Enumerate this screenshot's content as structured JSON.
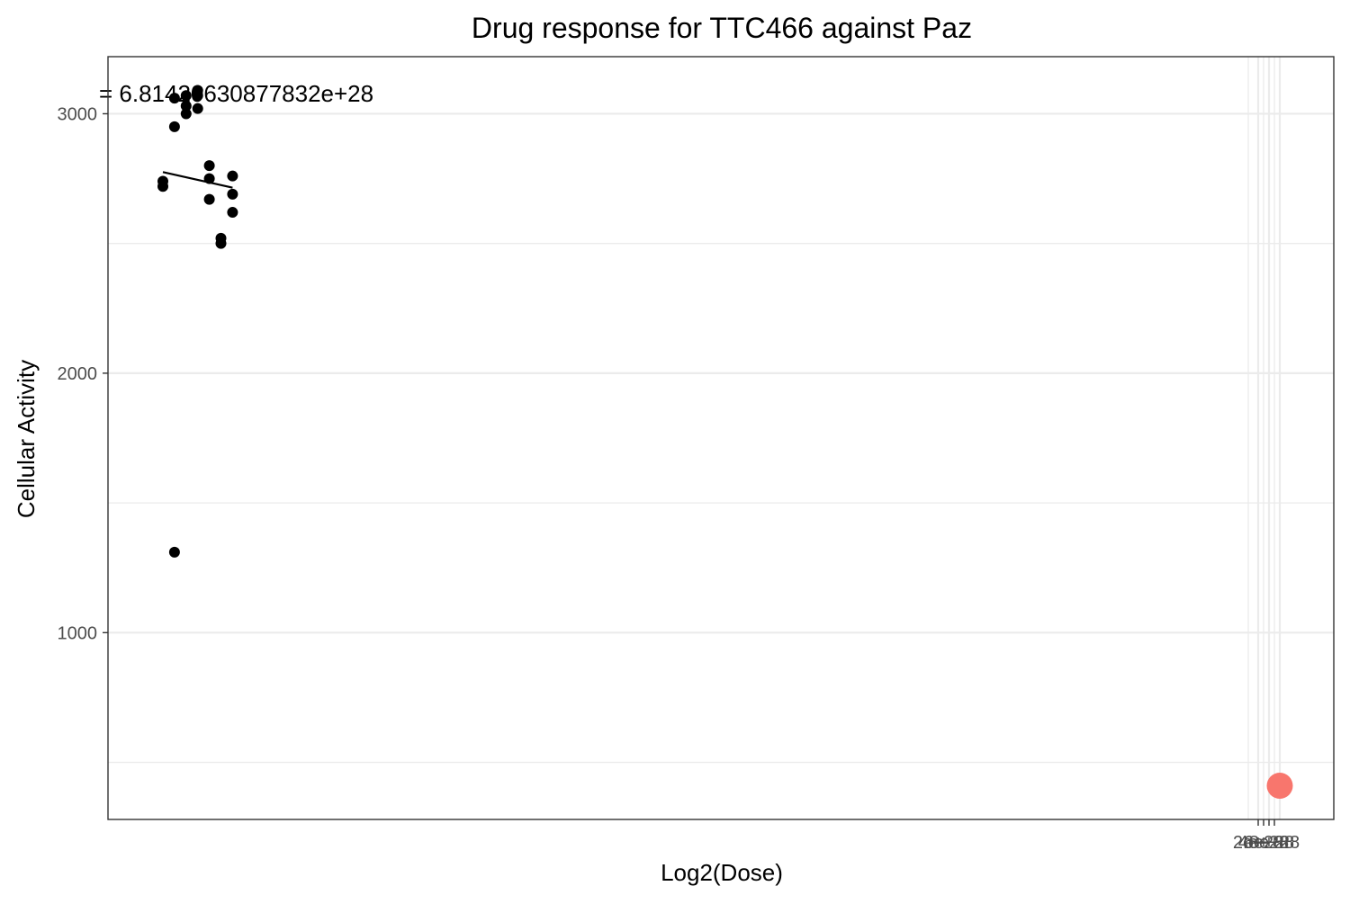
{
  "chart_data": {
    "type": "scatter",
    "title": "Drug response for TTC466 against Paz",
    "xlabel": "Log2(Dose)",
    "ylabel": "Cellular Activity",
    "annotation": "= 6.81420630877832e+28",
    "grid": true,
    "legend": "none",
    "ylim": [
      280,
      3220
    ],
    "y_ticks": [
      1000,
      2000,
      3000
    ],
    "x_tick_labels": [
      "2e+28",
      "4e+28",
      "6e+28",
      "8e+28"
    ],
    "series": [
      {
        "kind": "points",
        "color": "#000000",
        "points": [
          {
            "x": 0,
            "y": 2720
          },
          {
            "x": 0,
            "y": 2740
          },
          {
            "x": 1,
            "y": 3060
          },
          {
            "x": 1,
            "y": 2950
          },
          {
            "x": 1,
            "y": 1310
          },
          {
            "x": 2,
            "y": 3070
          },
          {
            "x": 2,
            "y": 3030
          },
          {
            "x": 2,
            "y": 3000
          },
          {
            "x": 3,
            "y": 3090
          },
          {
            "x": 3,
            "y": 3070
          },
          {
            "x": 3,
            "y": 3020
          },
          {
            "x": 4,
            "y": 2800
          },
          {
            "x": 4,
            "y": 2750
          },
          {
            "x": 4,
            "y": 2670
          },
          {
            "x": 5,
            "y": 2520
          },
          {
            "x": 5,
            "y": 2500
          },
          {
            "x": 6,
            "y": 2760
          },
          {
            "x": 6,
            "y": 2690
          },
          {
            "x": 6,
            "y": 2620
          }
        ]
      },
      {
        "kind": "fit-line",
        "color": "#000000",
        "points": [
          {
            "x": 0,
            "y": 2775
          },
          {
            "x": 6,
            "y": 2715
          }
        ]
      },
      {
        "kind": "highlight-point",
        "color": "#f8766d",
        "points": [
          {
            "x": 6.81420630877832e+28,
            "y": 410
          }
        ]
      }
    ]
  }
}
